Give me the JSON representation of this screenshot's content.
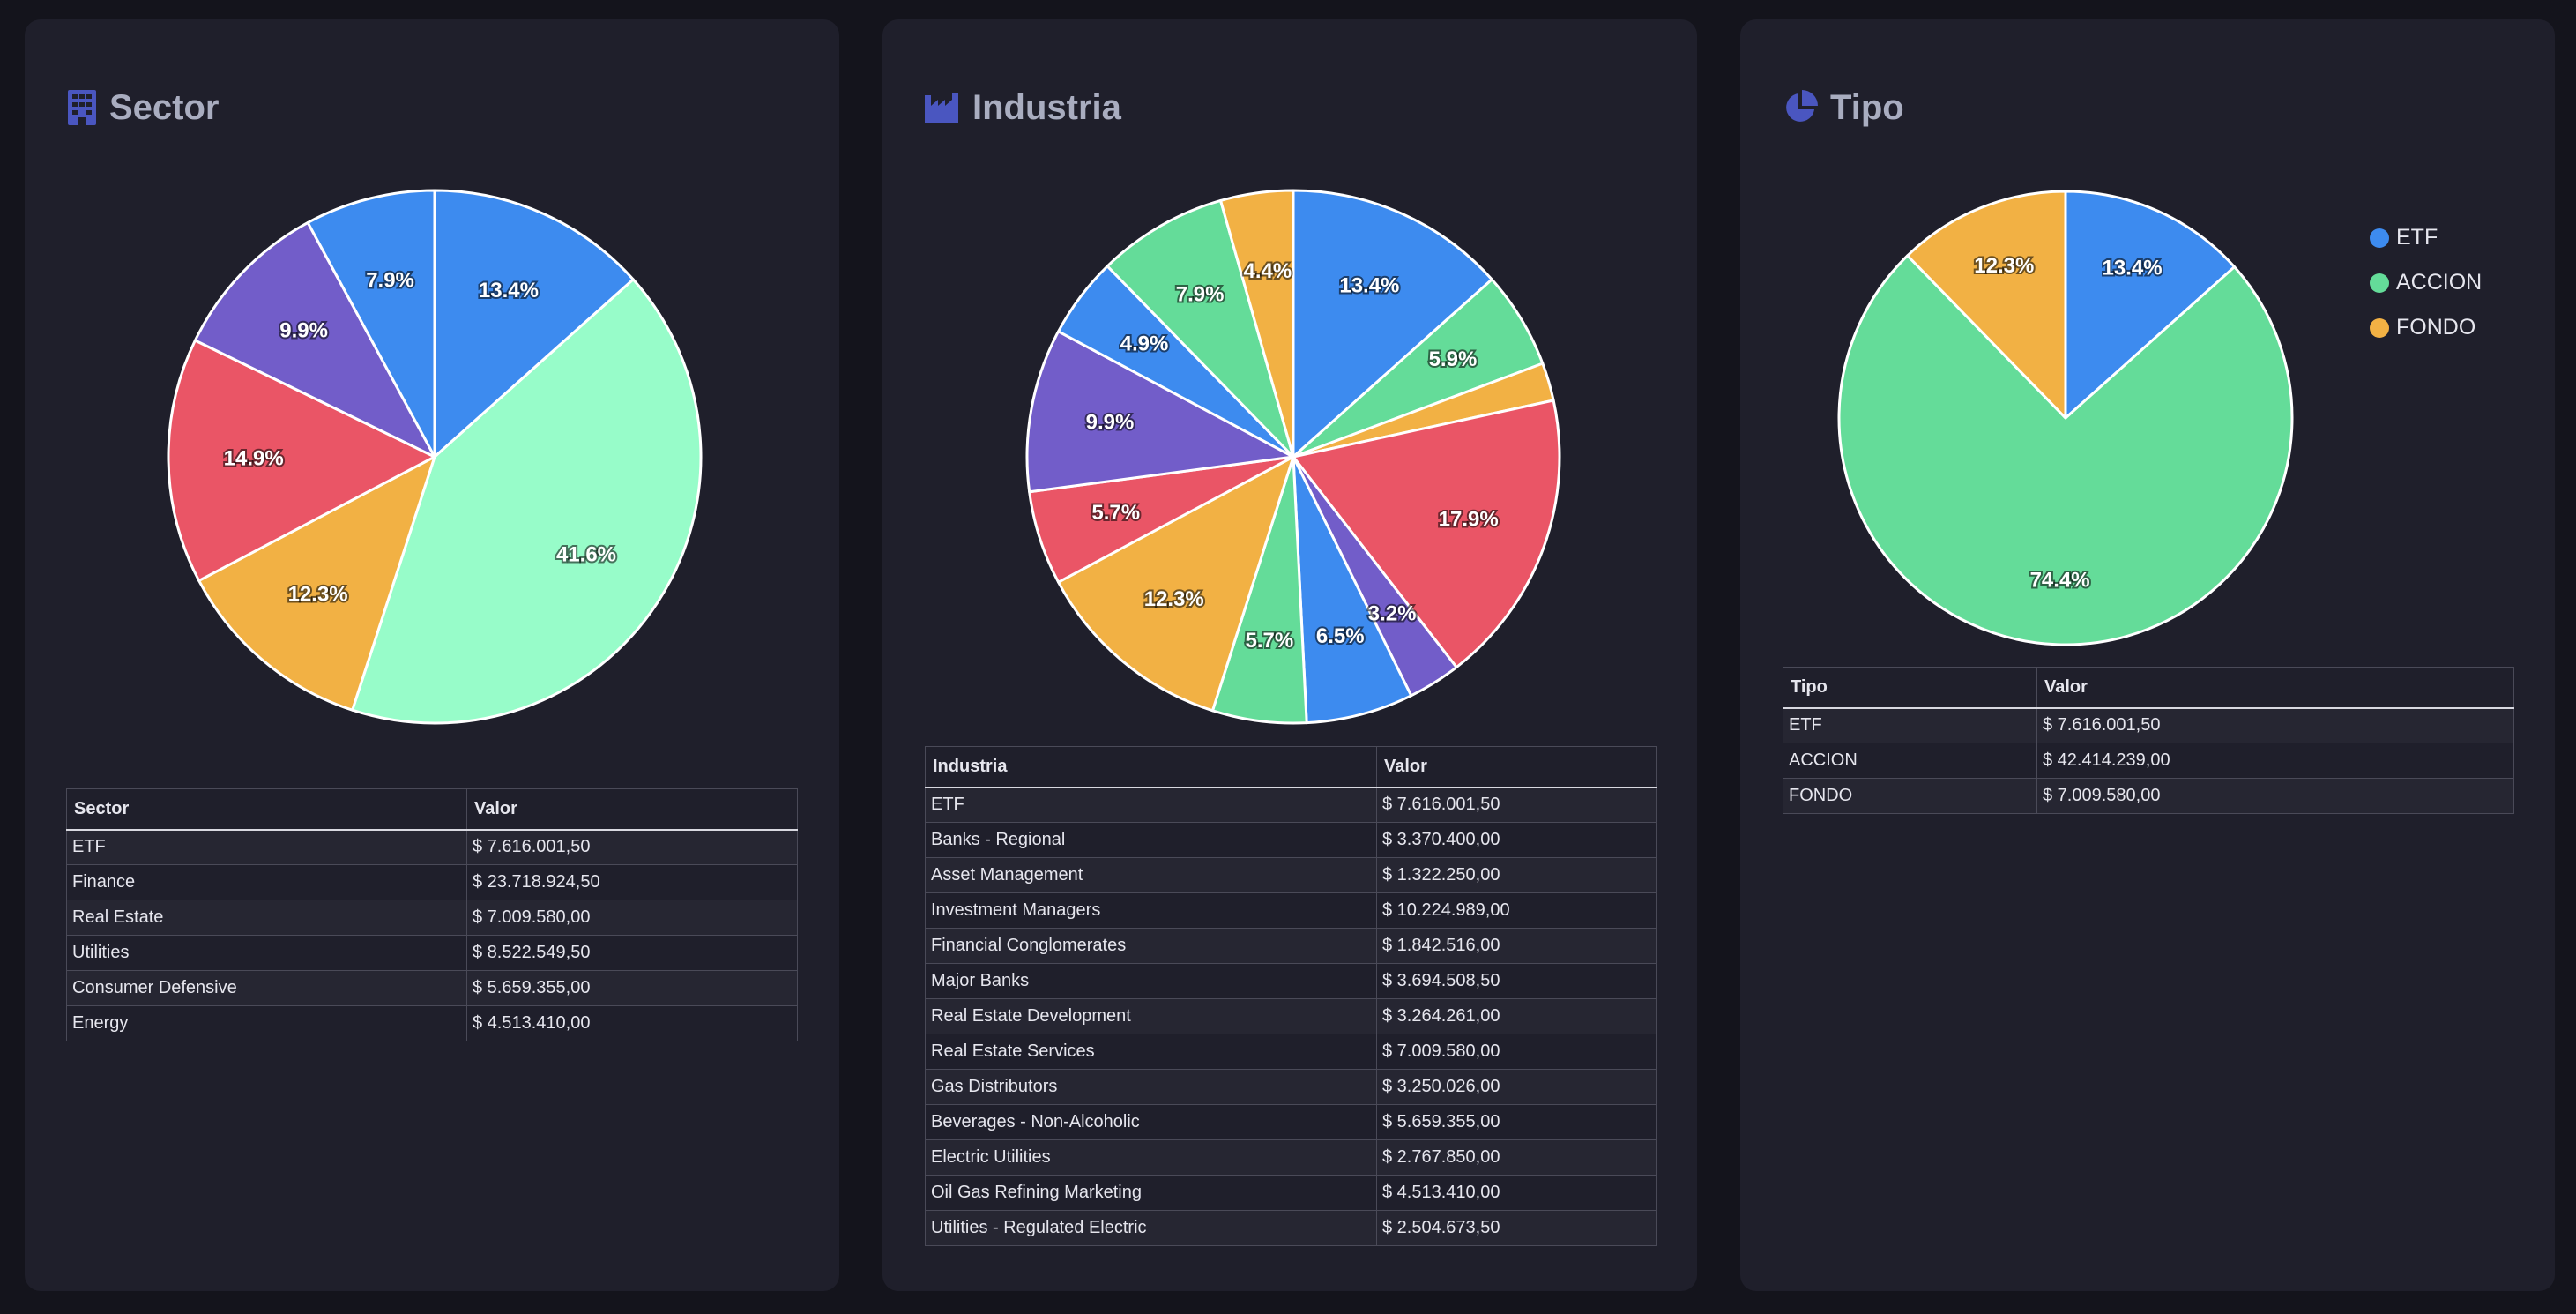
{
  "colors": {
    "blue": "#3d8bef",
    "mint": "#97fcc9",
    "green": "#64dc99",
    "yellow": "#f2b144",
    "red": "#ea5566",
    "purple": "#725dc9",
    "title": "#a9adc0",
    "icon": "#4a56c0"
  },
  "cards": {
    "sector": {
      "title": "Sector",
      "icon": "building-icon",
      "col1": "Sector",
      "col2": "Valor"
    },
    "industria": {
      "title": "Industria",
      "icon": "factory-icon",
      "col1": "Industria",
      "col2": "Valor"
    },
    "tipo": {
      "title": "Tipo",
      "icon": "pie-chart-icon",
      "col1": "Tipo",
      "col2": "Valor"
    }
  },
  "chart_data": [
    {
      "type": "pie",
      "title": "Sector",
      "categories": [
        "ETF",
        "Finance",
        "Real Estate",
        "Utilities",
        "Consumer Defensive",
        "Energy"
      ],
      "values": [
        13.4,
        41.6,
        12.3,
        14.9,
        9.9,
        7.9
      ],
      "labels": [
        "13.4%",
        "41.6%",
        "12.3%",
        "14.9%",
        "9.9%",
        "7.9%"
      ],
      "colors": [
        "#3d8bef",
        "#97fcc9",
        "#f2b144",
        "#ea5566",
        "#725dc9",
        "#3d8bef"
      ]
    },
    {
      "type": "pie",
      "title": "Industria",
      "categories": [
        "ETF",
        "Banks - Regional",
        "Asset Management",
        "Investment Managers",
        "Financial Conglomerates",
        "Major Banks",
        "Real Estate Development",
        "Real Estate Services",
        "Gas Distributors",
        "Beverages - Non-Alcoholic",
        "Electric Utilities",
        "Oil Gas Refining Marketing",
        "Utilities - Regulated Electric"
      ],
      "values": [
        13.4,
        5.9,
        2.3,
        17.9,
        3.2,
        6.5,
        5.7,
        12.3,
        5.7,
        9.9,
        4.9,
        7.9,
        4.4
      ],
      "labels": [
        "13.4%",
        "5.9%",
        "",
        "17.9%",
        "3.2%",
        "6.5%",
        "5.7%",
        "12.3%",
        "5.7%",
        "9.9%",
        "4.9%",
        "7.9%",
        "4.4%"
      ],
      "colors": [
        "#3d8bef",
        "#64dc99",
        "#f2b144",
        "#ea5566",
        "#725dc9",
        "#3d8bef",
        "#64dc99",
        "#f2b144",
        "#ea5566",
        "#725dc9",
        "#3d8bef",
        "#64dc99",
        "#f2b144"
      ]
    },
    {
      "type": "pie",
      "title": "Tipo",
      "categories": [
        "ETF",
        "ACCION",
        "FONDO"
      ],
      "values": [
        13.4,
        74.4,
        12.3
      ],
      "labels": [
        "13.4%",
        "74.4%",
        "12.3%"
      ],
      "colors": [
        "#3d8bef",
        "#64dc99",
        "#f2b144"
      ],
      "legend": {
        "position": "top-right",
        "entries": [
          "ETF",
          "ACCION",
          "FONDO"
        ]
      }
    }
  ],
  "tables": {
    "sector": [
      [
        "ETF",
        "$ 7.616.001,50"
      ],
      [
        "Finance",
        "$ 23.718.924,50"
      ],
      [
        "Real Estate",
        "$ 7.009.580,00"
      ],
      [
        "Utilities",
        "$ 8.522.549,50"
      ],
      [
        "Consumer Defensive",
        "$ 5.659.355,00"
      ],
      [
        "Energy",
        "$ 4.513.410,00"
      ]
    ],
    "industria": [
      [
        "ETF",
        "$ 7.616.001,50"
      ],
      [
        "Banks - Regional",
        "$ 3.370.400,00"
      ],
      [
        "Asset Management",
        "$ 1.322.250,00"
      ],
      [
        "Investment Managers",
        "$ 10.224.989,00"
      ],
      [
        "Financial Conglomerates",
        "$ 1.842.516,00"
      ],
      [
        "Major Banks",
        "$ 3.694.508,50"
      ],
      [
        "Real Estate Development",
        "$ 3.264.261,00"
      ],
      [
        "Real Estate Services",
        "$ 7.009.580,00"
      ],
      [
        "Gas Distributors",
        "$ 3.250.026,00"
      ],
      [
        "Beverages - Non-Alcoholic",
        "$ 5.659.355,00"
      ],
      [
        "Electric Utilities",
        "$ 2.767.850,00"
      ],
      [
        "Oil Gas Refining Marketing",
        "$ 4.513.410,00"
      ],
      [
        "Utilities - Regulated Electric",
        "$ 2.504.673,50"
      ]
    ],
    "tipo": [
      [
        "ETF",
        "$ 7.616.001,50"
      ],
      [
        "ACCION",
        "$ 42.414.239,00"
      ],
      [
        "FONDO",
        "$ 7.009.580,00"
      ]
    ]
  }
}
